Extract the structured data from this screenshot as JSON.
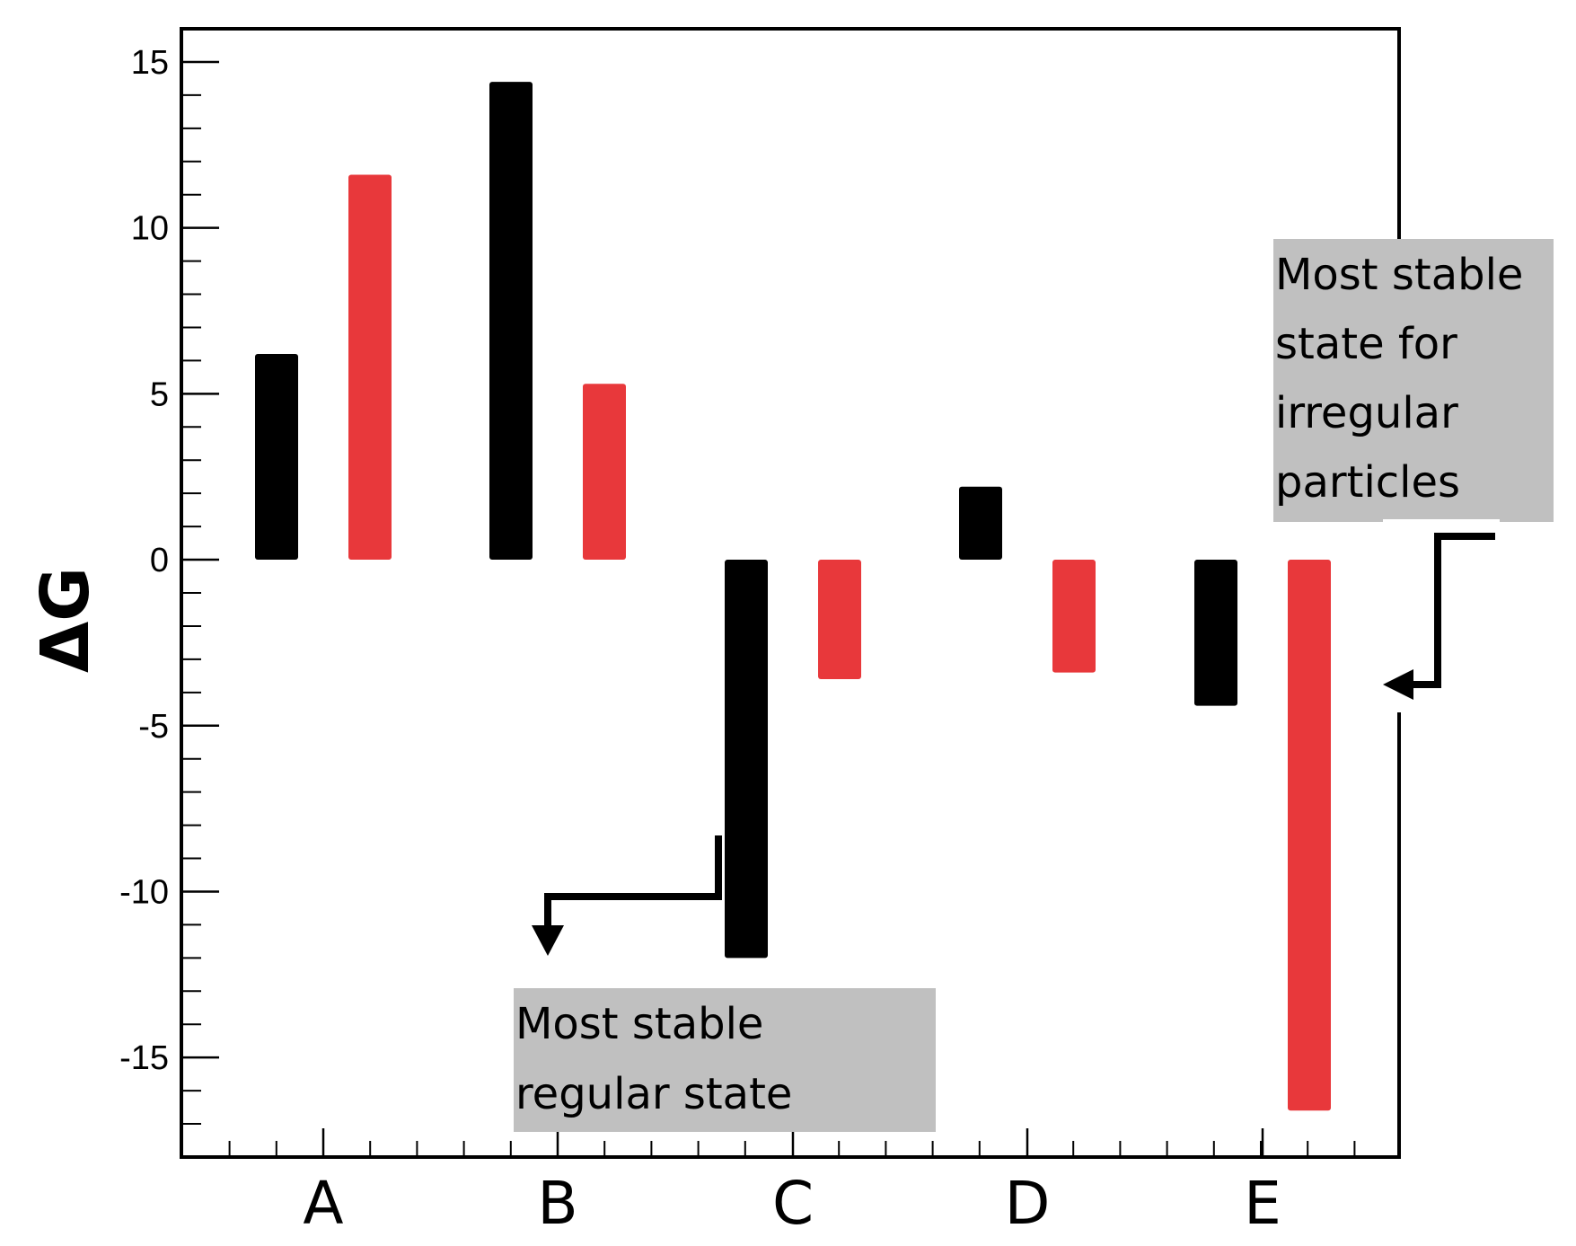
{
  "chart_data": {
    "type": "bar",
    "title": "",
    "xlabel": "",
    "ylabel": "ΔG",
    "ylim": [
      -18,
      16
    ],
    "y_ticks": [
      15,
      10,
      5,
      0,
      -5,
      -10,
      -15
    ],
    "y_tick_labels": [
      "15",
      "10",
      "5",
      "0",
      "-5",
      "-10",
      "-15"
    ],
    "categories": [
      "A",
      "B",
      "C",
      "D",
      "E"
    ],
    "grid": false,
    "legend": "none",
    "series": [
      {
        "color": "#000000",
        "values": [
          6.2,
          14.4,
          -12.0,
          2.2,
          -4.4
        ]
      },
      {
        "color": "#e8383b",
        "values": [
          11.6,
          5.3,
          -3.6,
          -3.4,
          -16.6
        ]
      }
    ],
    "annotations": [
      {
        "lines": [
          "Most stable",
          "regular state"
        ],
        "points_to": "C"
      },
      {
        "lines": [
          "Most stable",
          "state for",
          "irregular",
          "particles"
        ],
        "points_to": "E"
      }
    ]
  }
}
